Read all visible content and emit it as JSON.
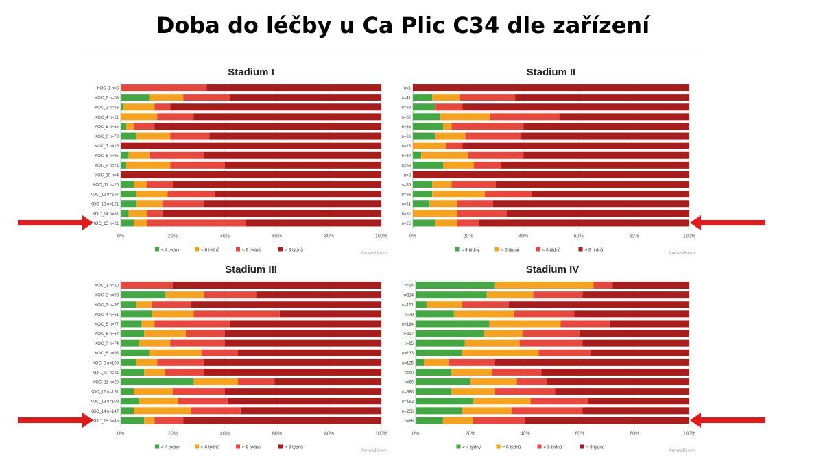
{
  "page": {
    "title": "Doba do léčby u Ca Plic C34 dle zařízení"
  },
  "colors": {
    "lt4": "#43a843",
    "lt6": "#f5a31f",
    "lt8": "#e8473e",
    "gt8": "#a81c1c",
    "grid": "#e3e3e3",
    "arrow": "#e31a1a"
  },
  "legend": [
    "< 4 týdny",
    "< 6 týdnů",
    "< 8 týdnů",
    "> 8 týdnů"
  ],
  "credit": "CanvasJS.com",
  "chart_data": [
    {
      "type": "bar",
      "stacked": "100%",
      "title": "Stadium I",
      "categories": [
        "KOC_1 n=3",
        "KOC_2 n=53",
        "KOC_3 n=63",
        "KOC_4 n=21",
        "KOC_5 n=55",
        "KOC_6 n=78",
        "KOC_7 n=15",
        "KOC_8 n=95",
        "KOC_9 n=74",
        "KOC_10 n=4",
        "KOC_11 n=20",
        "KOC_12 n=157",
        "KOC_13 n=121",
        "KOC_14 n=61",
        "KOC_15 n=21"
      ],
      "xticks": [
        "0%",
        "20%",
        "40%",
        "60%",
        "80%",
        "100%"
      ],
      "series": [
        {
          "name": "< 4 týdny",
          "values": [
            0,
            11,
            1,
            0,
            2,
            6,
            0,
            3,
            2,
            0,
            5,
            6,
            6,
            3,
            5
          ]
        },
        {
          "name": "< 6 týdnů",
          "values": [
            0,
            13,
            12,
            14,
            3,
            13,
            0,
            8,
            17,
            0,
            5,
            12,
            10,
            7,
            5
          ]
        },
        {
          "name": "< 8 týdnů",
          "values": [
            33,
            18,
            6,
            14,
            8,
            15,
            0,
            21,
            21,
            0,
            10,
            18,
            16,
            6,
            38
          ]
        },
        {
          "name": "> 8 týdnů",
          "values": [
            67,
            58,
            81,
            72,
            87,
            66,
            100,
            68,
            60,
            100,
            80,
            64,
            68,
            84,
            52
          ]
        }
      ],
      "highlight_last": true,
      "arrow": "left"
    },
    {
      "type": "bar",
      "stacked": "100%",
      "title": "Stadium II",
      "categories": [
        "n=1",
        "n=41",
        "n=39",
        "n=32",
        "n=35",
        "n=36",
        "n=16",
        "n=30",
        "n=63",
        "n=8",
        "n=30",
        "n=92",
        "n=61",
        "n=32",
        "n=25"
      ],
      "xticks": [
        "0%",
        "20%",
        "40%",
        "60%",
        "80%",
        "100%"
      ],
      "series": [
        {
          "name": "< 4 týdny",
          "values": [
            0,
            7,
            8,
            10,
            11,
            8,
            0,
            3,
            11,
            0,
            7,
            7,
            6,
            0,
            8
          ]
        },
        {
          "name": "< 6 týdnů",
          "values": [
            0,
            10,
            0,
            18,
            3,
            11,
            12,
            17,
            11,
            0,
            7,
            19,
            10,
            16,
            8
          ]
        },
        {
          "name": "< 8 týdnů",
          "values": [
            0,
            20,
            10,
            25,
            26,
            20,
            6,
            20,
            10,
            0,
            16,
            17,
            13,
            18,
            8
          ]
        },
        {
          "name": "> 8 týdnů",
          "values": [
            100,
            63,
            82,
            47,
            60,
            61,
            82,
            60,
            68,
            100,
            70,
            57,
            71,
            66,
            76
          ]
        }
      ],
      "highlight_last": true,
      "arrow": "right"
    },
    {
      "type": "bar",
      "stacked": "100%",
      "title": "Stadium III",
      "categories": [
        "KOC_1 n=10",
        "KOC_2 n=93",
        "KOC_3 n=97",
        "KOC_4 n=51",
        "KOC_5 n=77",
        "KOC_6 n=64",
        "KOC_7 n=74",
        "KOC_8 n=93",
        "KOC_9 n=103",
        "KOC_10 n=34",
        "KOC_11 n=29",
        "KOC_12 n=191",
        "KOC_13 n=109",
        "KOC_14 n=147",
        "KOC_15 n=45"
      ],
      "xticks": [
        "0%",
        "20%",
        "40%",
        "60%",
        "80%",
        "100%"
      ],
      "series": [
        {
          "name": "< 4 týdny",
          "values": [
            0,
            17,
            6,
            12,
            8,
            9,
            7,
            11,
            6,
            9,
            28,
            5,
            7,
            5,
            9
          ]
        },
        {
          "name": "< 6 týdnů",
          "values": [
            0,
            15,
            6,
            16,
            5,
            16,
            12,
            20,
            8,
            8,
            17,
            15,
            15,
            22,
            4
          ]
        },
        {
          "name": "< 8 týdnů",
          "values": [
            20,
            20,
            15,
            33,
            29,
            15,
            21,
            14,
            18,
            15,
            14,
            20,
            19,
            19,
            11
          ]
        },
        {
          "name": "> 8 týdnů",
          "values": [
            80,
            48,
            73,
            39,
            58,
            60,
            60,
            55,
            68,
            68,
            41,
            60,
            59,
            54,
            76
          ]
        }
      ],
      "highlight_last": true,
      "arrow": "left"
    },
    {
      "type": "bar",
      "stacked": "100%",
      "title": "Stadium IV",
      "categories": [
        "n=14",
        "n=114",
        "n=151",
        "n=79",
        "n=184",
        "n=117",
        "n=95",
        "n=133",
        "n=125",
        "n=60",
        "n=60",
        "n=380",
        "n=182",
        "n=256",
        "n=86"
      ],
      "xticks": [
        "0%",
        "20%",
        "40%",
        "60%",
        "80%",
        "100%"
      ],
      "series": [
        {
          "name": "< 4 týdny",
          "values": [
            29,
            26,
            4,
            14,
            27,
            25,
            18,
            17,
            3,
            13,
            20,
            13,
            21,
            17,
            10
          ]
        },
        {
          "name": "< 6 týdnů",
          "values": [
            36,
            17,
            13,
            22,
            26,
            14,
            20,
            28,
            9,
            15,
            17,
            16,
            21,
            18,
            11
          ]
        },
        {
          "name": "< 8 týdnů",
          "values": [
            7,
            18,
            17,
            22,
            18,
            21,
            23,
            19,
            17,
            18,
            11,
            22,
            21,
            26,
            19
          ]
        },
        {
          "name": "> 8 týdnů",
          "values": [
            28,
            39,
            66,
            42,
            29,
            40,
            39,
            36,
            71,
            54,
            52,
            49,
            37,
            39,
            60
          ]
        }
      ],
      "highlight_last": true,
      "arrow": "right"
    }
  ]
}
